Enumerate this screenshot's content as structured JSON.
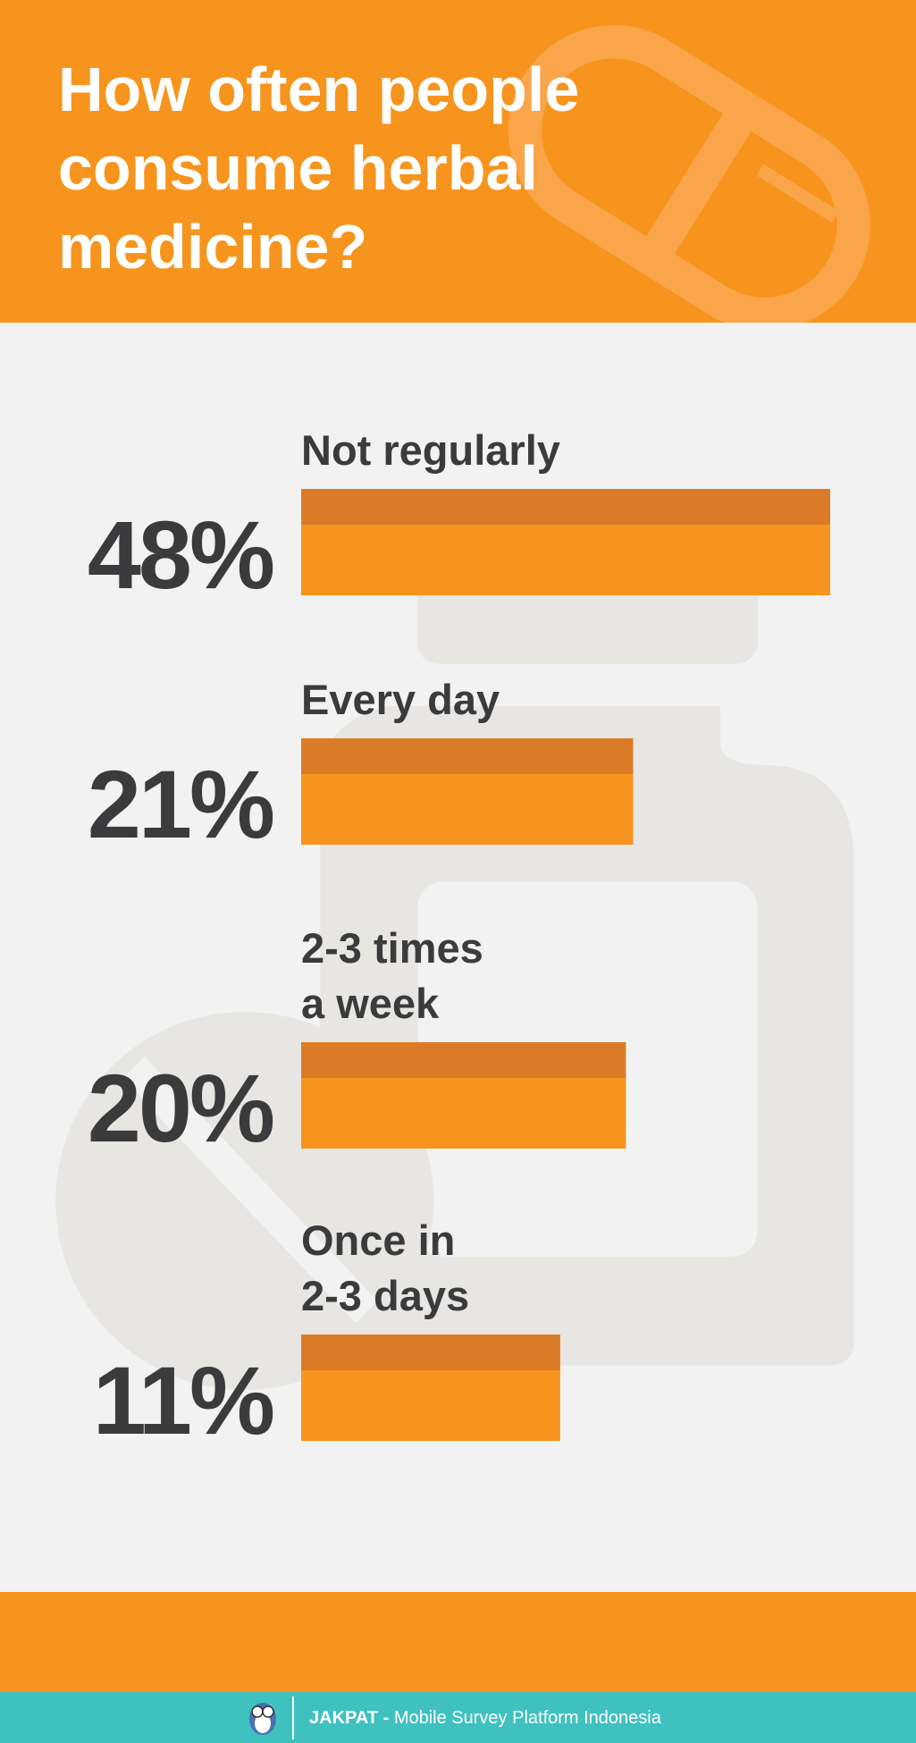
{
  "chart_data": {
    "type": "bar",
    "title": "How often people consume herbal medicine?",
    "categories": [
      "Not regularly",
      "Every day",
      "2-3 times\na week",
      "Once in\n2-3 days"
    ],
    "values": [
      48,
      21,
      20,
      11
    ],
    "value_labels": [
      "48%",
      "21%",
      "20%",
      "11%"
    ],
    "color": "#F7941D"
  },
  "footer": {
    "brand": "JAKPAT -",
    "tagline": "Mobile Survey Platform Indonesia"
  }
}
